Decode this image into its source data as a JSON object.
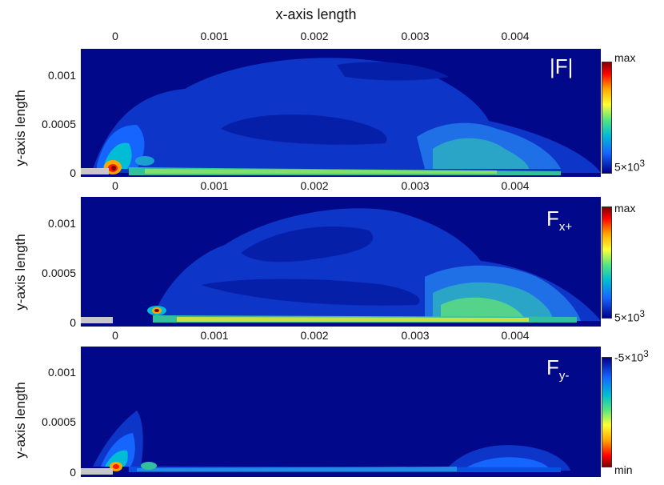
{
  "chart_data": {
    "type": "heatmap",
    "x_axis_title": "x-axis length",
    "x_ticks": [
      "0",
      "0.001",
      "0.002",
      "0.003",
      "0.004"
    ],
    "x_tick_values": [
      0,
      0.001,
      0.002,
      0.003,
      0.004
    ],
    "xlim": [
      -0.0001,
      0.0048
    ],
    "ylim": [
      -5e-05,
      0.00125
    ],
    "panels": [
      {
        "title": "|F|",
        "title_sub": "",
        "ylabel": "y-axis length",
        "y_ticks": [
          "0.001",
          "0.0005",
          "0"
        ],
        "y_tick_values": [
          0.001,
          0.0005,
          0
        ],
        "colorbar": {
          "top_label": "max",
          "bottom_label_base": "5×10",
          "bottom_label_exp": "3",
          "colors": [
            "#7f0000",
            "#ff0000",
            "#ffa500",
            "#ffff33",
            "#55e680",
            "#00bcd4",
            "#1565ff",
            "#00008b"
          ]
        }
      },
      {
        "title": "F",
        "title_sub": "x+",
        "ylabel": "y-axis length",
        "y_ticks": [
          "0.001",
          "0.0005",
          "0"
        ],
        "y_tick_values": [
          0.001,
          0.0005,
          0
        ],
        "colorbar": {
          "top_label": "max",
          "bottom_label_base": "5×10",
          "bottom_label_exp": "3",
          "colors": [
            "#7f0000",
            "#ff0000",
            "#ffa500",
            "#ffff33",
            "#55e680",
            "#00bcd4",
            "#1565ff",
            "#00008b"
          ]
        }
      },
      {
        "title": "F",
        "title_sub": "y-",
        "ylabel": "y-axis length",
        "y_ticks": [
          "0.001",
          "0.0005",
          "0"
        ],
        "y_tick_values": [
          0.001,
          0.0005,
          0
        ],
        "colorbar": {
          "top_label_base": "-5×10",
          "top_label_exp": "3",
          "bottom_label": "min",
          "colors": [
            "#00008b",
            "#1565ff",
            "#00bcd4",
            "#55e680",
            "#ffff33",
            "#ffa500",
            "#ff0000",
            "#7f0000"
          ]
        }
      }
    ]
  }
}
